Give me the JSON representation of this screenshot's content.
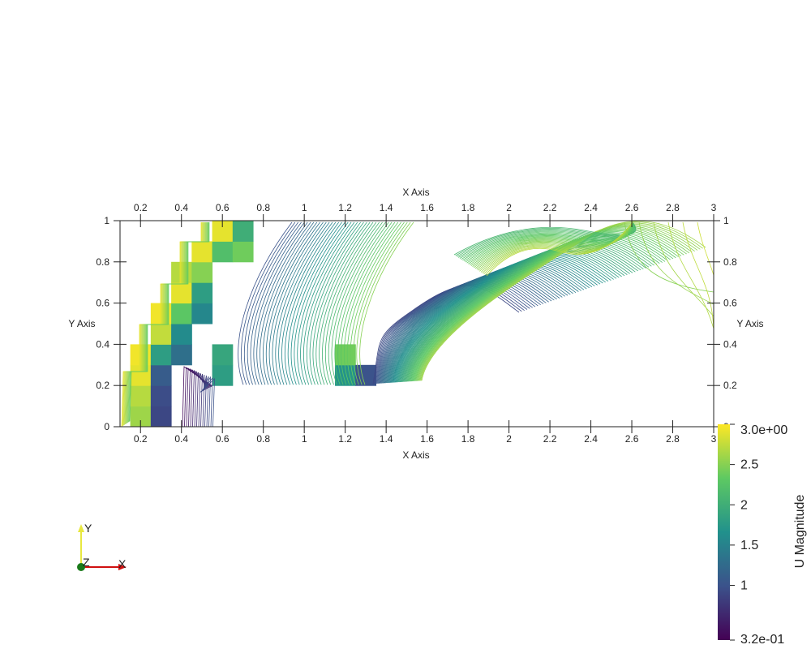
{
  "chart_data": {
    "type": "contour",
    "field": "U Magnitude",
    "colormap": "viridis",
    "colormap_stops": [
      "#440154",
      "#3b528b",
      "#21918c",
      "#5ec962",
      "#fde725"
    ],
    "domain_x": [
      0.1,
      3
    ],
    "domain_y": [
      0,
      1
    ],
    "value_range": [
      0.32,
      3.0
    ],
    "axes": {
      "bottom": {
        "title": "X Axis",
        "ticks": [
          "0.2",
          "0.4",
          "0.6",
          "0.8",
          "1",
          "1.2",
          "1.4",
          "1.6",
          "1.8",
          "2",
          "2.2",
          "2.4",
          "2.6",
          "2.8",
          "3"
        ]
      },
      "top": {
        "title": "X Axis",
        "ticks": [
          "0.2",
          "0.4",
          "0.6",
          "0.8",
          "1",
          "1.2",
          "1.4",
          "1.6",
          "1.8",
          "2",
          "2.2",
          "2.4",
          "2.6",
          "2.8",
          "3"
        ]
      },
      "left": {
        "title": "Y Axis",
        "ticks": [
          "0",
          "0.2",
          "0.4",
          "0.6",
          "0.8",
          "1"
        ]
      },
      "right": {
        "title": "Y Axis",
        "ticks": [
          "0",
          "0.2",
          "0.4",
          "0.6",
          "0.8",
          "1"
        ]
      }
    },
    "colorbar": {
      "title": "U Magnitude",
      "max_label": "3.0e+00",
      "min_label": "3.2e-01",
      "tick_labels": [
        "2.5",
        "2",
        "1.5",
        "1"
      ]
    },
    "cells": [
      {
        "x": 0.2,
        "y": 0.0,
        "v": 2.6
      },
      {
        "x": 0.2,
        "y": 0.1,
        "v": 2.7
      },
      {
        "x": 0.2,
        "y": 0.2,
        "v": 2.9
      },
      {
        "x": 0.2,
        "y": 0.3,
        "v": 2.95
      },
      {
        "x": 0.3,
        "y": 0.0,
        "v": 0.9
      },
      {
        "x": 0.3,
        "y": 0.1,
        "v": 0.95
      },
      {
        "x": 0.3,
        "y": 0.2,
        "v": 1.1
      },
      {
        "x": 0.3,
        "y": 0.3,
        "v": 1.8
      },
      {
        "x": 0.3,
        "y": 0.4,
        "v": 2.75
      },
      {
        "x": 0.3,
        "y": 0.5,
        "v": 2.95
      },
      {
        "x": 0.4,
        "y": 0.3,
        "v": 1.3
      },
      {
        "x": 0.4,
        "y": 0.4,
        "v": 1.6
      },
      {
        "x": 0.4,
        "y": 0.5,
        "v": 2.3
      },
      {
        "x": 0.4,
        "y": 0.6,
        "v": 2.9
      },
      {
        "x": 0.4,
        "y": 0.7,
        "v": 2.7
      },
      {
        "x": 0.5,
        "y": 0.5,
        "v": 1.55
      },
      {
        "x": 0.5,
        "y": 0.6,
        "v": 1.8
      },
      {
        "x": 0.5,
        "y": 0.7,
        "v": 2.5
      },
      {
        "x": 0.5,
        "y": 0.8,
        "v": 2.9
      },
      {
        "x": 0.6,
        "y": 0.2,
        "v": 1.8
      },
      {
        "x": 0.6,
        "y": 0.3,
        "v": 1.9
      },
      {
        "x": 0.6,
        "y": 0.8,
        "v": 2.2
      },
      {
        "x": 0.6,
        "y": 0.9,
        "v": 2.9
      },
      {
        "x": 0.7,
        "y": 0.8,
        "v": 2.4
      },
      {
        "x": 0.7,
        "y": 0.9,
        "v": 2.0
      },
      {
        "x": 1.2,
        "y": 0.2,
        "v": 1.7
      },
      {
        "x": 1.2,
        "y": 0.3,
        "v": 2.4
      },
      {
        "x": 1.3,
        "y": 0.2,
        "v": 1.0
      }
    ]
  },
  "orientation_axes": {
    "x_label": "X",
    "y_label": "Y",
    "z_label": "Z"
  }
}
